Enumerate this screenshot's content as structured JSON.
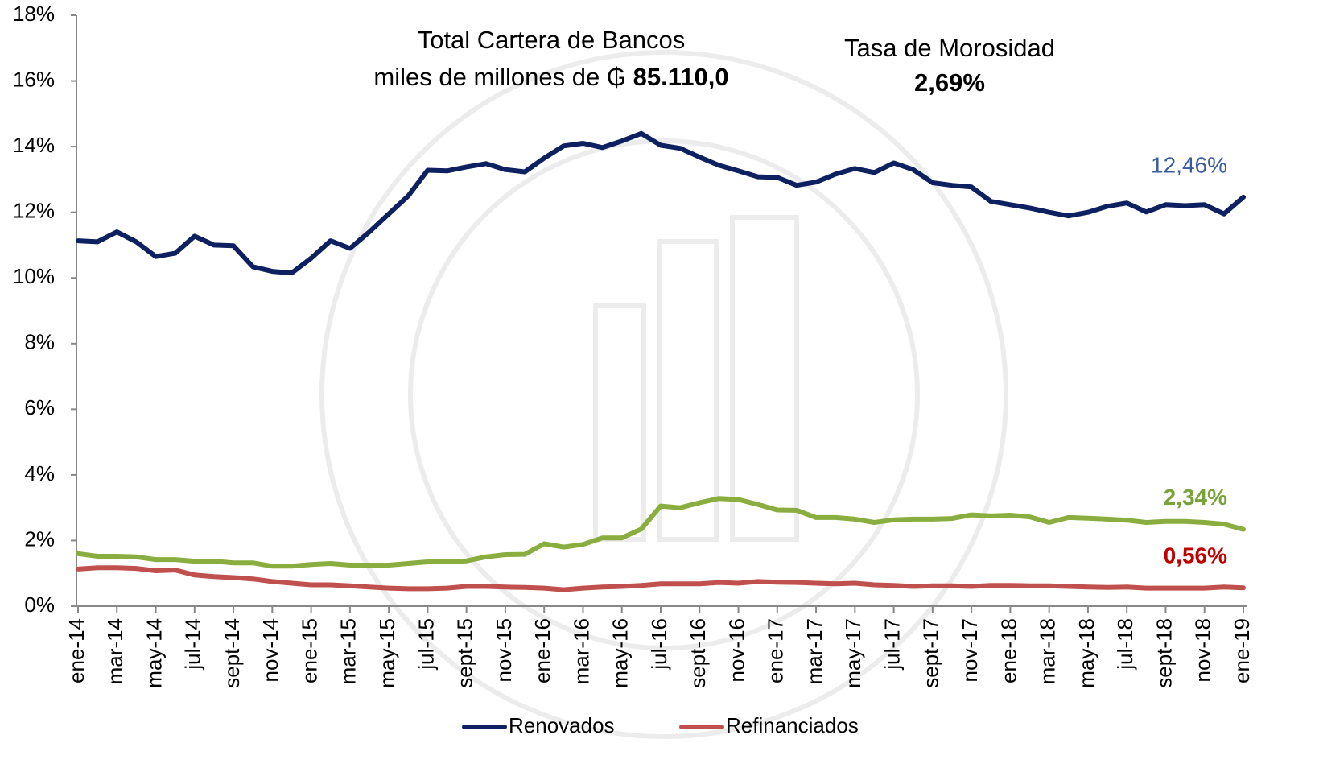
{
  "chart_data": {
    "type": "line",
    "annotations": {
      "portfolio_title": "Total Cartera de Bancos",
      "portfolio_prefix": "miles de millones de ₲",
      "portfolio_value": "85.110,0",
      "rate_title": "Tasa de Morosidad",
      "rate_value": "2,69%"
    },
    "categories": [
      "ene-14",
      null,
      "mar-14",
      null,
      "may-14",
      null,
      "jul-14",
      null,
      "sept-14",
      null,
      "nov-14",
      null,
      "ene-15",
      null,
      "mar-15",
      null,
      "may-15",
      null,
      "jul-15",
      null,
      "sept-15",
      null,
      "nov-15",
      null,
      "ene-16",
      null,
      "mar-16",
      null,
      "may-16",
      null,
      "jul-16",
      null,
      "sept-16",
      null,
      "nov-16",
      null,
      "ene-17",
      null,
      "mar-17",
      null,
      "may-17",
      null,
      "jul-17",
      null,
      "sept-17",
      null,
      "nov-17",
      null,
      "ene-18",
      null,
      "mar-18",
      null,
      "may-18",
      null,
      "jul-18",
      null,
      "sept-18",
      null,
      "nov-18",
      null,
      "ene-19"
    ],
    "series": [
      {
        "name": "Renovados",
        "color": "#0d2060",
        "label_color": "#3b5b9a",
        "values": [
          11.13,
          11.1,
          11.4,
          11.1,
          10.65,
          10.75,
          11.27,
          11.0,
          10.98,
          10.34,
          10.2,
          10.15,
          10.6,
          11.13,
          10.9,
          11.4,
          11.95,
          12.5,
          13.28,
          13.26,
          13.38,
          13.48,
          13.3,
          13.23,
          13.65,
          14.02,
          14.1,
          13.97,
          14.17,
          14.4,
          14.04,
          13.95,
          13.68,
          13.43,
          13.26,
          13.08,
          13.06,
          12.82,
          12.92,
          13.16,
          13.33,
          13.21,
          13.5,
          13.3,
          12.9,
          12.82,
          12.77,
          12.33,
          12.23,
          12.13,
          12.0,
          11.89,
          12.0,
          12.18,
          12.28,
          12.01,
          12.23,
          12.2,
          12.23,
          11.95,
          12.46
        ],
        "value_labels": [
          null,
          null,
          null,
          null,
          null,
          null,
          null,
          null,
          null,
          null,
          null,
          null,
          null,
          null,
          null,
          null,
          null,
          null,
          null,
          null,
          null,
          null,
          null,
          null,
          null,
          null,
          null,
          null,
          null,
          null,
          null,
          null,
          null,
          null,
          null,
          null,
          null,
          null,
          null,
          null,
          null,
          null,
          null,
          null,
          null,
          null,
          null,
          null,
          null,
          null,
          null,
          null,
          null,
          null,
          null,
          null,
          null,
          null,
          null,
          null,
          "12,46%"
        ]
      },
      {
        "color": "#8aad3f",
        "label_color": "#7aa23a",
        "values": [
          1.6,
          1.52,
          1.52,
          1.5,
          1.42,
          1.42,
          1.37,
          1.37,
          1.32,
          1.32,
          1.22,
          1.22,
          1.27,
          1.3,
          1.25,
          1.25,
          1.25,
          1.3,
          1.35,
          1.35,
          1.38,
          1.5,
          1.57,
          1.58,
          1.9,
          1.8,
          1.88,
          2.08,
          2.08,
          2.35,
          3.05,
          3.0,
          3.15,
          3.28,
          3.25,
          3.1,
          2.93,
          2.92,
          2.7,
          2.7,
          2.65,
          2.55,
          2.63,
          2.65,
          2.65,
          2.67,
          2.78,
          2.75,
          2.77,
          2.72,
          2.55,
          2.7,
          2.68,
          2.65,
          2.62,
          2.55,
          2.58,
          2.58,
          2.55,
          2.5,
          2.34
        ],
        "value_labels": [
          null,
          null,
          null,
          null,
          null,
          null,
          null,
          null,
          null,
          null,
          null,
          null,
          null,
          null,
          null,
          null,
          null,
          null,
          null,
          null,
          null,
          null,
          null,
          null,
          null,
          null,
          null,
          null,
          null,
          null,
          null,
          null,
          null,
          null,
          null,
          null,
          null,
          null,
          null,
          null,
          null,
          null,
          null,
          null,
          null,
          null,
          null,
          null,
          null,
          null,
          null,
          null,
          null,
          null,
          null,
          null,
          null,
          null,
          null,
          null,
          "2,34%"
        ]
      },
      {
        "name": "Refinanciados",
        "color": "#c0504d",
        "label_color": "#c00000",
        "values": [
          1.13,
          1.17,
          1.17,
          1.15,
          1.08,
          1.1,
          0.95,
          0.9,
          0.87,
          0.83,
          0.75,
          0.7,
          0.65,
          0.65,
          0.62,
          0.58,
          0.55,
          0.53,
          0.53,
          0.55,
          0.6,
          0.6,
          0.58,
          0.57,
          0.55,
          0.5,
          0.55,
          0.58,
          0.6,
          0.63,
          0.68,
          0.68,
          0.68,
          0.72,
          0.7,
          0.75,
          0.73,
          0.72,
          0.7,
          0.68,
          0.7,
          0.65,
          0.63,
          0.6,
          0.62,
          0.62,
          0.6,
          0.63,
          0.63,
          0.62,
          0.62,
          0.6,
          0.58,
          0.57,
          0.58,
          0.55,
          0.55,
          0.55,
          0.55,
          0.58,
          0.56
        ],
        "value_labels": [
          null,
          null,
          null,
          null,
          null,
          null,
          null,
          null,
          null,
          null,
          null,
          null,
          null,
          null,
          null,
          null,
          null,
          null,
          null,
          null,
          null,
          null,
          null,
          null,
          null,
          null,
          null,
          null,
          null,
          null,
          null,
          null,
          null,
          null,
          null,
          null,
          null,
          null,
          null,
          null,
          null,
          null,
          null,
          null,
          null,
          null,
          null,
          null,
          null,
          null,
          null,
          null,
          null,
          null,
          null,
          null,
          null,
          null,
          null,
          null,
          "0,56%"
        ]
      }
    ],
    "ylim": [
      0,
      18
    ],
    "yticks": [
      {
        "value": 0,
        "label": "0%"
      },
      {
        "value": 2,
        "label": "2%"
      },
      {
        "value": 4,
        "label": "4%"
      },
      {
        "value": 6,
        "label": "6%"
      },
      {
        "value": 8,
        "label": "8%"
      },
      {
        "value": 10,
        "label": "10%"
      },
      {
        "value": 12,
        "label": "12%"
      },
      {
        "value": 14,
        "label": "14%"
      },
      {
        "value": 16,
        "label": "16%"
      },
      {
        "value": 18,
        "label": "18%"
      }
    ],
    "grid": false,
    "legend": "bottom"
  }
}
